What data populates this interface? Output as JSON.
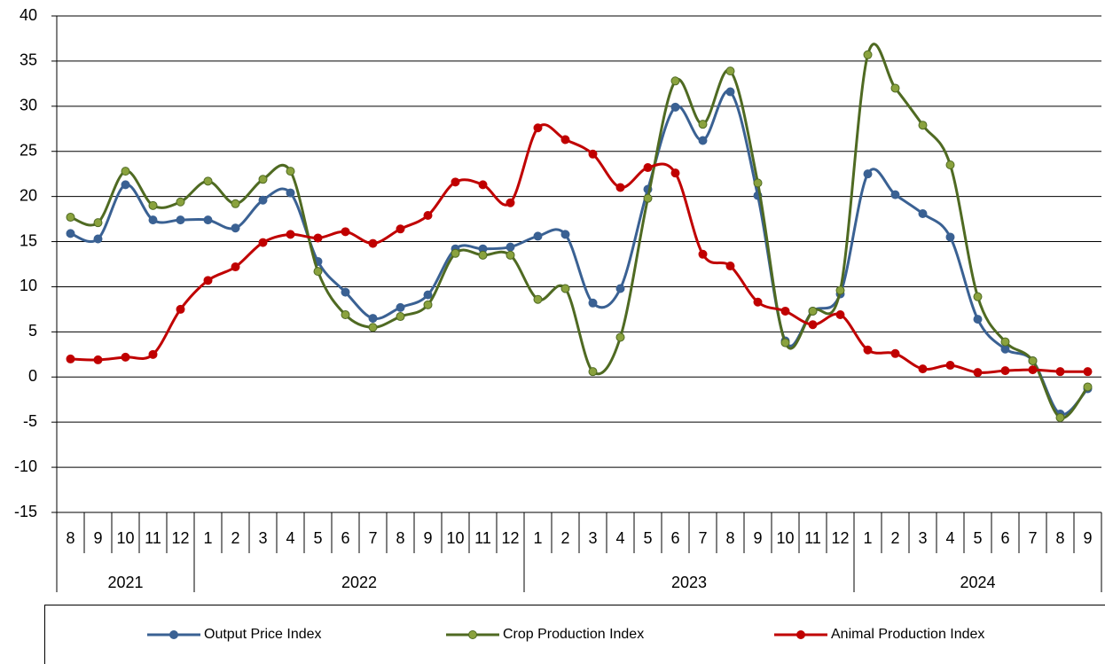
{
  "chart_data": {
    "type": "line",
    "category_groups": [
      {
        "label": "2021",
        "categories": [
          "8",
          "9",
          "10",
          "11",
          "12"
        ]
      },
      {
        "label": "2022",
        "categories": [
          "1",
          "2",
          "3",
          "4",
          "5",
          "6",
          "7",
          "8",
          "9",
          "10",
          "11",
          "12"
        ]
      },
      {
        "label": "2023",
        "categories": [
          "1",
          "2",
          "3",
          "4",
          "5",
          "6",
          "7",
          "8",
          "9",
          "10",
          "11",
          "12"
        ]
      },
      {
        "label": "2024",
        "categories": [
          "1",
          "2",
          "3",
          "4",
          "5",
          "6",
          "7",
          "8",
          "9"
        ]
      }
    ],
    "series": [
      {
        "name": "Output Price Index",
        "color": "#3a6193",
        "marker_color": "#3a6193",
        "values": [
          15.9,
          15.3,
          21.3,
          17.4,
          17.4,
          17.4,
          16.5,
          19.6,
          20.4,
          12.8,
          9.4,
          6.5,
          7.7,
          9.1,
          14.2,
          14.2,
          14.4,
          15.6,
          15.8,
          8.2,
          9.8,
          20.8,
          29.9,
          26.2,
          31.6,
          20.1,
          4.0,
          7.3,
          9.2,
          22.5,
          20.2,
          18.1,
          15.5,
          6.4,
          3.1,
          1.8,
          -4.1,
          -1.3
        ]
      },
      {
        "name": "Crop Production Index",
        "color": "#4f6a22",
        "marker_color": "#8aa23e",
        "values": [
          17.7,
          17.1,
          22.8,
          19.0,
          19.4,
          21.7,
          19.2,
          21.9,
          22.8,
          11.7,
          6.9,
          5.5,
          6.7,
          8.0,
          13.7,
          13.5,
          13.5,
          8.6,
          9.8,
          0.6,
          4.4,
          19.8,
          32.8,
          28.0,
          33.9,
          21.5,
          3.8,
          7.3,
          9.6,
          35.7,
          32.0,
          27.9,
          23.5,
          8.9,
          3.9,
          1.8,
          -4.5,
          -1.1
        ]
      },
      {
        "name": "Animal Production Index",
        "color": "#c00000",
        "marker_color": "#c00000",
        "values": [
          2.0,
          1.9,
          2.2,
          2.5,
          7.5,
          10.7,
          12.2,
          14.9,
          15.8,
          15.4,
          16.1,
          14.8,
          16.4,
          17.9,
          21.6,
          21.3,
          19.3,
          27.6,
          26.3,
          24.7,
          21.0,
          23.2,
          22.6,
          13.6,
          12.3,
          8.3,
          7.3,
          5.8,
          6.9,
          3.0,
          2.6,
          0.9,
          1.3,
          0.5,
          0.7,
          0.8,
          0.6,
          0.6
        ]
      }
    ],
    "ylim": [
      -15,
      40
    ],
    "yticks": [
      -15,
      -10,
      -5,
      0,
      5,
      10,
      15,
      20,
      25,
      30,
      35,
      40
    ],
    "grid": true,
    "smooth": true,
    "legend": "bottom"
  }
}
